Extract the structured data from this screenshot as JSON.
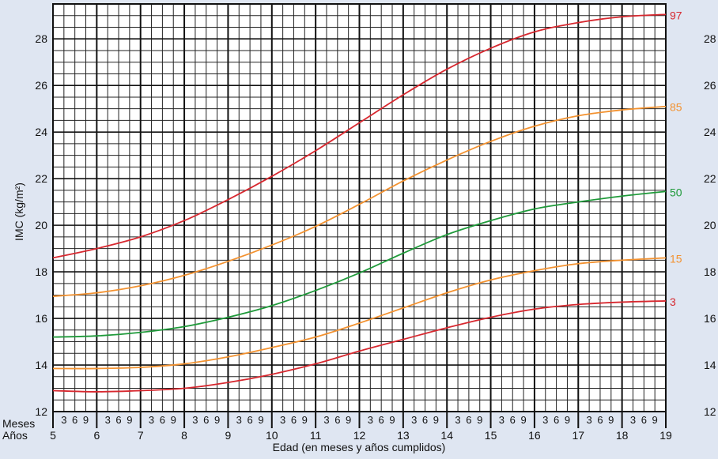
{
  "chart_data": {
    "type": "line",
    "title": "",
    "xlabel": "Edad (en meses y años cumplidos)",
    "ylabel": "IMC (kg/m²)",
    "xlim": [
      5,
      19
    ],
    "ylim": [
      12,
      29.5
    ],
    "y_ticks": [
      12,
      14,
      16,
      18,
      20,
      22,
      24,
      26,
      28
    ],
    "x_ticks_years": [
      5,
      6,
      7,
      8,
      9,
      10,
      11,
      12,
      13,
      14,
      15,
      16,
      17,
      18,
      19
    ],
    "x_month_ticks": [
      "3",
      "6",
      "9"
    ],
    "row_labels": {
      "months": "Meses",
      "years": "Años"
    },
    "grid": true,
    "x": [
      5,
      6,
      7,
      8,
      9,
      10,
      11,
      12,
      13,
      14,
      15,
      16,
      17,
      18,
      19
    ],
    "series": [
      {
        "name": "97",
        "color": "#d7282f",
        "values": [
          18.6,
          19.0,
          19.5,
          20.2,
          21.1,
          22.1,
          23.2,
          24.4,
          25.6,
          26.7,
          27.6,
          28.3,
          28.7,
          28.95,
          29.05
        ]
      },
      {
        "name": "85",
        "color": "#f39230",
        "values": [
          16.95,
          17.1,
          17.4,
          17.85,
          18.45,
          19.15,
          19.95,
          20.9,
          21.9,
          22.8,
          23.6,
          24.25,
          24.7,
          24.95,
          25.1
        ]
      },
      {
        "name": "50",
        "color": "#1f9a3a",
        "values": [
          15.2,
          15.25,
          15.4,
          15.65,
          16.05,
          16.55,
          17.2,
          17.95,
          18.8,
          19.6,
          20.2,
          20.7,
          21.0,
          21.25,
          21.45
        ]
      },
      {
        "name": "15",
        "color": "#f39230",
        "values": [
          13.85,
          13.85,
          13.9,
          14.05,
          14.35,
          14.75,
          15.2,
          15.8,
          16.45,
          17.1,
          17.65,
          18.05,
          18.35,
          18.5,
          18.6
        ]
      },
      {
        "name": "3",
        "color": "#d7282f",
        "values": [
          12.9,
          12.85,
          12.9,
          13.0,
          13.25,
          13.6,
          14.05,
          14.6,
          15.1,
          15.6,
          16.05,
          16.4,
          16.6,
          16.7,
          16.75
        ]
      }
    ]
  }
}
